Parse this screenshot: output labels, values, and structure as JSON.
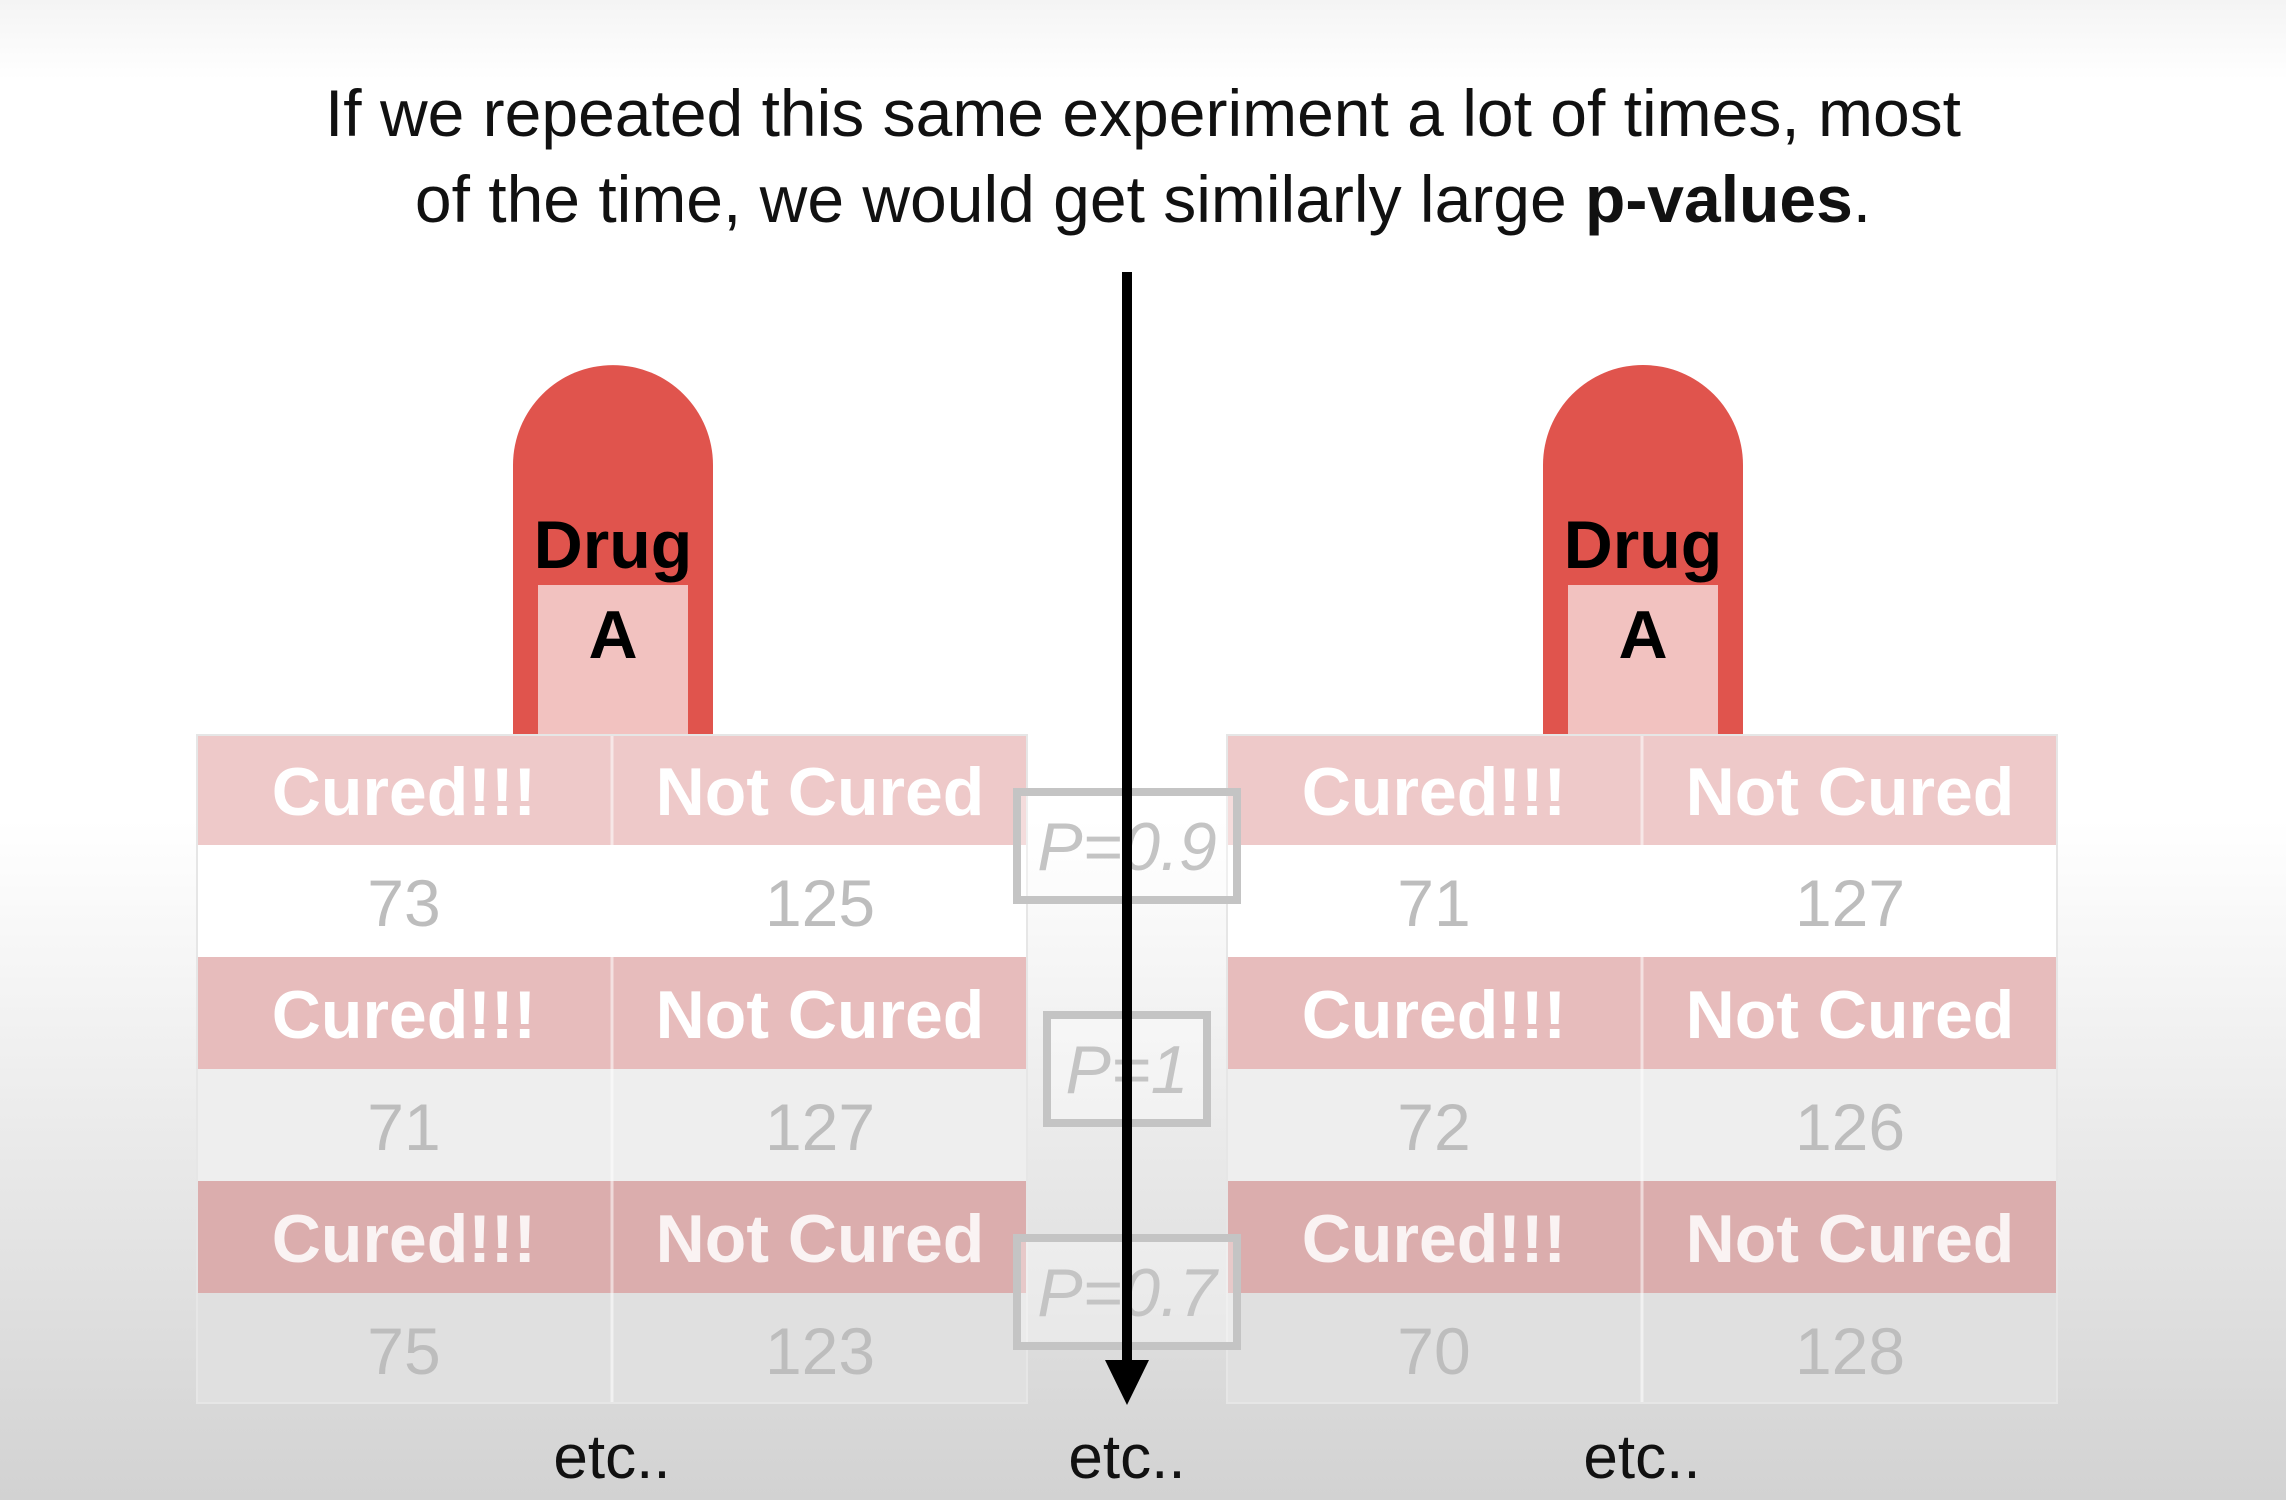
{
  "headline": {
    "line1": "If we repeated this same experiment a lot of times, most",
    "line2_prefix": "of the time, we would get similarly large ",
    "line2_bold": "p-values",
    "line2_suffix": "."
  },
  "pills": [
    {
      "word": "Drug",
      "letter": "A"
    },
    {
      "word": "Drug",
      "letter": "A"
    }
  ],
  "tables": [
    {
      "rows": [
        {
          "cured_label": "Cured!!!",
          "not_cured_label": "Not Cured",
          "cured": "73",
          "not_cured": "125"
        },
        {
          "cured_label": "Cured!!!",
          "not_cured_label": "Not Cured",
          "cured": "71",
          "not_cured": "127"
        },
        {
          "cured_label": "Cured!!!",
          "not_cured_label": "Not Cured",
          "cured": "75",
          "not_cured": "123"
        }
      ],
      "etc": "etc.."
    },
    {
      "rows": [
        {
          "cured_label": "Cured!!!",
          "not_cured_label": "Not Cured",
          "cured": "71",
          "not_cured": "127"
        },
        {
          "cured_label": "Cured!!!",
          "not_cured_label": "Not Cured",
          "cured": "72",
          "not_cured": "126"
        },
        {
          "cured_label": "Cured!!!",
          "not_cured_label": "Not Cured",
          "cured": "70",
          "not_cured": "128"
        }
      ],
      "etc": "etc.."
    }
  ],
  "p_values": [
    "P=0.9",
    "P=1",
    "P=0.7"
  ],
  "center_etc": "etc..",
  "colors": {
    "pill_red": "#e0544d",
    "pill_window": "#f2c2c0",
    "header_row": [
      "#eec9c9",
      "#e7bcbc",
      "#dbadad"
    ],
    "value_row": [
      "#ffffff",
      "#eeeeee",
      "#e0e0e0"
    ],
    "header_text": "#ffffff",
    "value_text": "#bdbdbd",
    "pbox": "#c4c4c4"
  }
}
